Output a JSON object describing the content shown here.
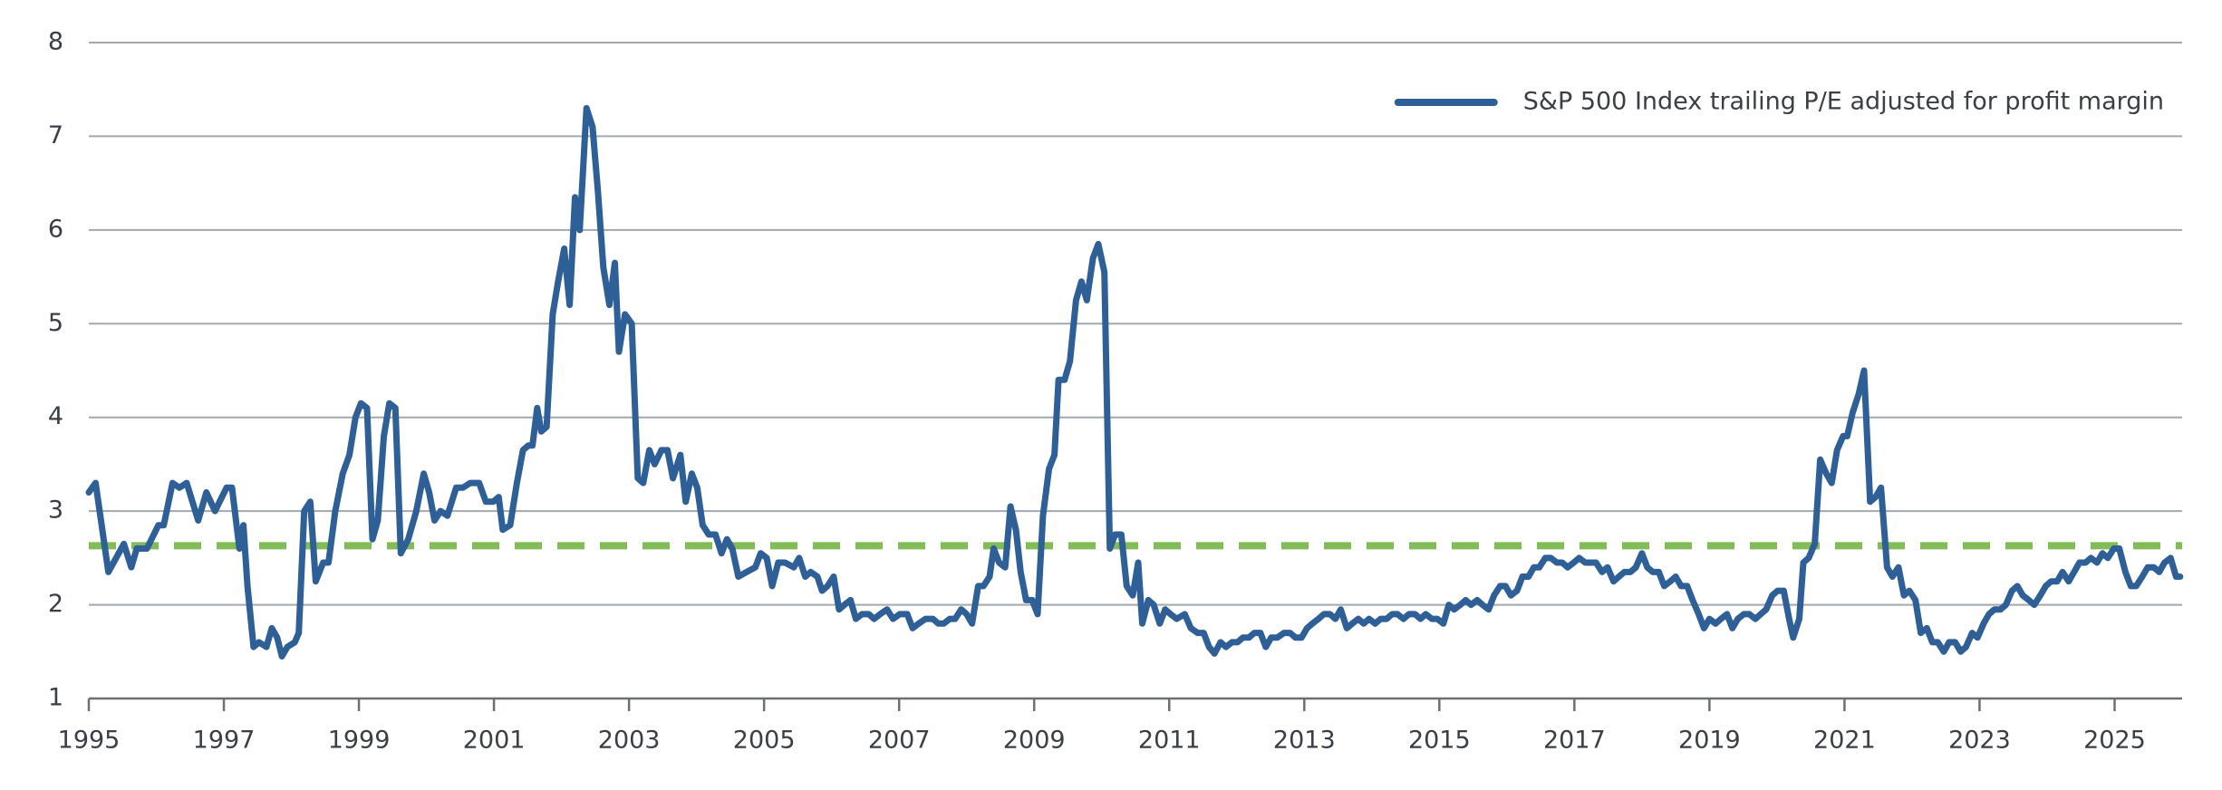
{
  "chart_data": {
    "type": "line",
    "legend": "upper right",
    "grid": true,
    "xlim": [
      1995,
      2026
    ],
    "ylim": [
      1,
      8
    ],
    "xticks": [
      1995,
      1997,
      1999,
      2001,
      2003,
      2005,
      2007,
      2009,
      2011,
      2013,
      2015,
      2017,
      2019,
      2021,
      2023,
      2025
    ],
    "yticks": [
      1,
      2,
      3,
      4,
      5,
      6,
      7,
      8
    ],
    "reference_line": {
      "value": 2.63,
      "color": "#82bc57"
    },
    "x": [
      1995.0,
      1995.1,
      1995.29,
      1995.52,
      1995.63,
      1995.71,
      1995.86,
      1996.03,
      1996.11,
      1996.24,
      1996.34,
      1996.45,
      1996.62,
      1996.74,
      1996.87,
      1997.04,
      1997.12,
      1997.23,
      1997.29,
      1997.35,
      1997.44,
      1997.52,
      1997.63,
      1997.71,
      1997.79,
      1997.86,
      1997.94,
      1998.05,
      1998.11,
      1998.19,
      1998.28,
      1998.36,
      1998.47,
      1998.55,
      1998.65,
      1998.76,
      1998.86,
      1998.95,
      1999.03,
      1999.12,
      1999.2,
      1999.28,
      1999.37,
      1999.45,
      1999.54,
      1999.62,
      1999.73,
      1999.85,
      1999.96,
      2000.04,
      2000.12,
      2000.21,
      2000.31,
      2000.44,
      2000.54,
      2000.65,
      2000.78,
      2000.88,
      2000.99,
      2001.07,
      2001.13,
      2001.24,
      2001.34,
      2001.43,
      2001.51,
      2001.57,
      2001.64,
      2001.7,
      2001.78,
      2001.87,
      2001.95,
      2002.04,
      2002.12,
      2002.2,
      2002.27,
      2002.37,
      2002.46,
      2002.54,
      2002.62,
      2002.71,
      2002.79,
      2002.85,
      2002.94,
      2003.04,
      2003.13,
      2003.21,
      2003.3,
      2003.38,
      2003.48,
      2003.57,
      2003.65,
      2003.76,
      2003.84,
      2003.93,
      2004.01,
      2004.09,
      2004.18,
      2004.28,
      2004.37,
      2004.45,
      2004.53,
      2004.62,
      2004.74,
      2004.87,
      2004.95,
      2005.04,
      2005.12,
      2005.21,
      2005.31,
      2005.44,
      2005.52,
      2005.61,
      2005.69,
      2005.79,
      2005.86,
      2005.94,
      2006.03,
      2006.11,
      2006.19,
      2006.28,
      2006.36,
      2006.45,
      2006.55,
      2006.63,
      2006.72,
      2006.82,
      2006.91,
      2007.01,
      2007.12,
      2007.2,
      2007.29,
      2007.39,
      2007.5,
      2007.58,
      2007.66,
      2007.75,
      2007.83,
      2007.92,
      2008.0,
      2008.08,
      2008.17,
      2008.25,
      2008.34,
      2008.4,
      2008.48,
      2008.57,
      2008.65,
      2008.73,
      2008.8,
      2008.88,
      2008.97,
      2009.05,
      2009.13,
      2009.22,
      2009.3,
      2009.36,
      2009.45,
      2009.53,
      2009.62,
      2009.7,
      2009.78,
      2009.87,
      2009.95,
      2010.04,
      2010.12,
      2010.2,
      2010.29,
      2010.37,
      2010.46,
      2010.54,
      2010.6,
      2010.69,
      2010.77,
      2010.86,
      2010.94,
      2011.02,
      2011.11,
      2011.23,
      2011.32,
      2011.42,
      2011.51,
      2011.59,
      2011.67,
      2011.76,
      2011.84,
      2011.93,
      2012.01,
      2012.09,
      2012.18,
      2012.26,
      2012.35,
      2012.43,
      2012.51,
      2012.6,
      2012.7,
      2012.79,
      2012.87,
      2012.96,
      2013.04,
      2013.12,
      2013.21,
      2013.29,
      2013.38,
      2013.46,
      2013.54,
      2013.63,
      2013.71,
      2013.8,
      2013.88,
      2013.96,
      2014.05,
      2014.13,
      2014.22,
      2014.3,
      2014.38,
      2014.47,
      2014.55,
      2014.64,
      2014.72,
      2014.8,
      2014.89,
      2014.97,
      2015.06,
      2015.14,
      2015.22,
      2015.31,
      2015.39,
      2015.47,
      2015.56,
      2015.64,
      2015.73,
      2015.81,
      2015.9,
      2015.98,
      2016.06,
      2016.15,
      2016.23,
      2016.32,
      2016.4,
      2016.48,
      2016.57,
      2016.65,
      2016.74,
      2016.82,
      2016.9,
      2016.99,
      2017.07,
      2017.16,
      2017.24,
      2017.32,
      2017.41,
      2017.49,
      2017.58,
      2017.66,
      2017.74,
      2017.83,
      2017.91,
      2018.0,
      2018.08,
      2018.16,
      2018.25,
      2018.33,
      2018.42,
      2018.5,
      2018.58,
      2018.67,
      2018.75,
      2018.84,
      2018.92,
      2019.0,
      2019.09,
      2019.17,
      2019.26,
      2019.34,
      2019.42,
      2019.51,
      2019.59,
      2019.68,
      2019.76,
      2019.84,
      2019.93,
      2020.01,
      2020.1,
      2020.18,
      2020.24,
      2020.33,
      2020.39,
      2020.47,
      2020.56,
      2020.64,
      2020.73,
      2020.81,
      2020.89,
      2020.98,
      2021.04,
      2021.12,
      2021.21,
      2021.29,
      2021.38,
      2021.46,
      2021.54,
      2021.63,
      2021.71,
      2021.8,
      2021.88,
      2021.96,
      2022.05,
      2022.13,
      2022.22,
      2022.3,
      2022.38,
      2022.47,
      2022.55,
      2022.64,
      2022.72,
      2022.8,
      2022.89,
      2022.97,
      2023.06,
      2023.14,
      2023.22,
      2023.31,
      2023.39,
      2023.48,
      2023.56,
      2023.64,
      2023.73,
      2023.81,
      2023.9,
      2023.98,
      2024.06,
      2024.15,
      2024.23,
      2024.32,
      2024.4,
      2024.48,
      2024.57,
      2024.65,
      2024.74,
      2024.82,
      2024.9,
      2024.99,
      2025.07,
      2025.16,
      2025.24,
      2025.32,
      2025.41,
      2025.49,
      2025.58,
      2025.66,
      2025.74,
      2025.83,
      2025.91,
      2025.97
    ],
    "series": [
      {
        "name": "S&P 500 Index trailing P/E adjusted for profit margin",
        "color": "#2e5f97",
        "values": [
          3.2,
          3.3,
          2.35,
          2.65,
          2.4,
          2.6,
          2.6,
          2.85,
          2.85,
          3.3,
          3.25,
          3.3,
          2.9,
          3.2,
          3.0,
          3.25,
          3.25,
          2.6,
          2.85,
          2.2,
          1.55,
          1.6,
          1.55,
          1.75,
          1.65,
          1.45,
          1.55,
          1.6,
          1.7,
          3.0,
          3.1,
          2.25,
          2.45,
          2.45,
          3.0,
          3.4,
          3.6,
          4.0,
          4.15,
          4.1,
          2.7,
          2.9,
          3.8,
          4.15,
          4.1,
          2.55,
          2.7,
          3.0,
          3.4,
          3.2,
          2.9,
          3.0,
          2.95,
          3.25,
          3.25,
          3.3,
          3.3,
          3.1,
          3.1,
          3.15,
          2.8,
          2.85,
          3.3,
          3.65,
          3.7,
          3.7,
          4.1,
          3.85,
          3.9,
          5.1,
          5.45,
          5.8,
          5.2,
          6.35,
          6.0,
          7.3,
          7.1,
          6.4,
          5.6,
          5.2,
          5.65,
          4.7,
          5.1,
          5.0,
          3.35,
          3.3,
          3.65,
          3.5,
          3.65,
          3.65,
          3.35,
          3.6,
          3.1,
          3.4,
          3.25,
          2.85,
          2.75,
          2.75,
          2.55,
          2.7,
          2.6,
          2.3,
          2.35,
          2.4,
          2.55,
          2.5,
          2.2,
          2.45,
          2.45,
          2.4,
          2.5,
          2.3,
          2.35,
          2.3,
          2.15,
          2.2,
          2.3,
          1.95,
          2.0,
          2.05,
          1.85,
          1.9,
          1.9,
          1.85,
          1.9,
          1.95,
          1.85,
          1.9,
          1.9,
          1.75,
          1.8,
          1.85,
          1.85,
          1.8,
          1.8,
          1.85,
          1.85,
          1.95,
          1.9,
          1.8,
          2.2,
          2.2,
          2.3,
          2.6,
          2.45,
          2.4,
          3.05,
          2.8,
          2.35,
          2.05,
          2.05,
          1.9,
          2.95,
          3.45,
          3.6,
          4.4,
          4.4,
          4.6,
          5.25,
          5.45,
          5.25,
          5.7,
          5.85,
          5.55,
          2.6,
          2.75,
          2.75,
          2.2,
          2.1,
          2.45,
          1.8,
          2.05,
          2.0,
          1.8,
          1.95,
          1.9,
          1.85,
          1.9,
          1.75,
          1.7,
          1.7,
          1.55,
          1.48,
          1.6,
          1.55,
          1.6,
          1.6,
          1.65,
          1.65,
          1.7,
          1.7,
          1.55,
          1.65,
          1.65,
          1.7,
          1.7,
          1.65,
          1.65,
          1.75,
          1.8,
          1.85,
          1.9,
          1.9,
          1.85,
          1.95,
          1.75,
          1.8,
          1.85,
          1.8,
          1.85,
          1.8,
          1.85,
          1.85,
          1.9,
          1.9,
          1.85,
          1.9,
          1.9,
          1.85,
          1.9,
          1.85,
          1.85,
          1.8,
          2.0,
          1.95,
          2.0,
          2.05,
          2.0,
          2.05,
          2.0,
          1.95,
          2.1,
          2.2,
          2.2,
          2.1,
          2.15,
          2.3,
          2.3,
          2.4,
          2.4,
          2.5,
          2.5,
          2.45,
          2.45,
          2.4,
          2.45,
          2.5,
          2.45,
          2.45,
          2.45,
          2.35,
          2.4,
          2.25,
          2.3,
          2.35,
          2.35,
          2.4,
          2.55,
          2.4,
          2.35,
          2.35,
          2.2,
          2.25,
          2.3,
          2.2,
          2.2,
          2.05,
          1.9,
          1.75,
          1.85,
          1.8,
          1.85,
          1.9,
          1.75,
          1.85,
          1.9,
          1.9,
          1.85,
          1.9,
          1.95,
          2.1,
          2.15,
          2.15,
          1.85,
          1.65,
          1.85,
          2.45,
          2.5,
          2.65,
          3.55,
          3.4,
          3.3,
          3.65,
          3.8,
          3.8,
          4.05,
          4.25,
          4.5,
          3.1,
          3.15,
          3.25,
          2.4,
          2.3,
          2.4,
          2.1,
          2.15,
          2.05,
          1.7,
          1.75,
          1.6,
          1.6,
          1.5,
          1.6,
          1.6,
          1.5,
          1.55,
          1.7,
          1.65,
          1.8,
          1.9,
          1.95,
          1.95,
          2.0,
          2.15,
          2.2,
          2.1,
          2.05,
          2.0,
          2.1,
          2.2,
          2.25,
          2.25,
          2.35,
          2.25,
          2.35,
          2.45,
          2.45,
          2.5,
          2.45,
          2.55,
          2.5,
          2.6,
          2.6,
          2.35,
          2.2,
          2.2,
          2.3,
          2.4,
          2.4,
          2.35,
          2.45,
          2.5,
          2.3,
          2.3
        ]
      }
    ]
  }
}
